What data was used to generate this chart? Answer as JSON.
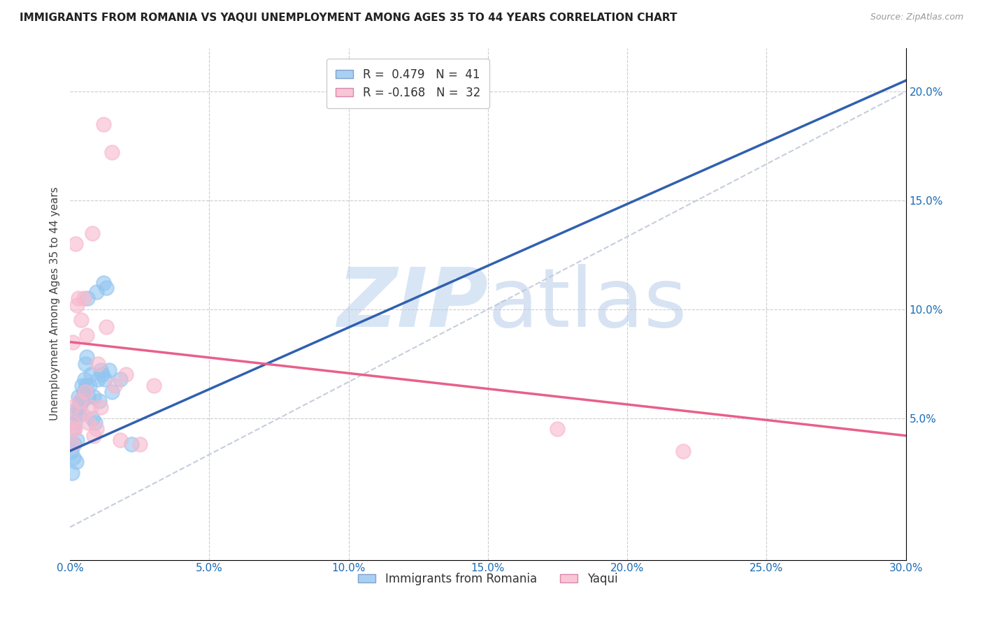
{
  "title": "IMMIGRANTS FROM ROMANIA VS YAQUI UNEMPLOYMENT AMONG AGES 35 TO 44 YEARS CORRELATION CHART",
  "source": "Source: ZipAtlas.com",
  "xlabel_ticks": [
    "0.0%",
    "5.0%",
    "10.0%",
    "15.0%",
    "20.0%",
    "25.0%",
    "30.0%"
  ],
  "xlabel_vals": [
    0.0,
    5.0,
    10.0,
    15.0,
    20.0,
    25.0,
    30.0
  ],
  "ylabel_right_ticks": [
    "20.0%",
    "15.0%",
    "10.0%",
    "5.0%"
  ],
  "ylabel_right_vals": [
    20.0,
    15.0,
    10.0,
    5.0
  ],
  "ylabel": "Unemployment Among Ages 35 to 44 years",
  "blue_scatter_x": [
    0.05,
    0.08,
    0.1,
    0.12,
    0.15,
    0.18,
    0.2,
    0.22,
    0.25,
    0.28,
    0.3,
    0.32,
    0.35,
    0.38,
    0.4,
    0.42,
    0.45,
    0.5,
    0.52,
    0.55,
    0.58,
    0.6,
    0.62,
    0.65,
    0.7,
    0.75,
    0.8,
    0.85,
    0.9,
    0.95,
    1.0,
    1.05,
    1.1,
    1.15,
    1.2,
    1.25,
    1.3,
    1.4,
    1.5,
    1.8,
    2.2
  ],
  "blue_scatter_y": [
    3.5,
    2.5,
    4.5,
    3.2,
    3.8,
    4.8,
    5.2,
    3.0,
    4.0,
    5.5,
    6.0,
    5.2,
    5.5,
    5.8,
    5.8,
    6.5,
    5.8,
    6.2,
    6.8,
    7.5,
    6.5,
    7.8,
    10.5,
    6.0,
    6.5,
    7.0,
    5.0,
    6.0,
    4.8,
    10.8,
    6.8,
    5.8,
    7.2,
    7.0,
    11.2,
    6.8,
    11.0,
    7.2,
    6.2,
    6.8,
    3.8
  ],
  "pink_scatter_x": [
    0.05,
    0.07,
    0.09,
    0.1,
    0.15,
    0.18,
    0.2,
    0.25,
    0.3,
    0.35,
    0.4,
    0.45,
    0.5,
    0.55,
    0.6,
    0.65,
    0.75,
    0.8,
    0.85,
    0.95,
    1.0,
    1.1,
    1.2,
    1.3,
    1.5,
    1.6,
    1.8,
    2.0,
    2.5,
    3.0,
    17.5,
    22.0
  ],
  "pink_scatter_y": [
    5.5,
    4.8,
    3.8,
    8.5,
    4.5,
    4.5,
    13.0,
    10.2,
    10.5,
    5.8,
    9.5,
    5.2,
    10.5,
    6.2,
    8.8,
    4.8,
    5.5,
    13.5,
    4.2,
    4.5,
    7.5,
    5.5,
    18.5,
    9.2,
    17.2,
    6.5,
    4.0,
    7.0,
    3.8,
    6.5,
    4.5,
    3.5
  ],
  "blue_line_x": [
    0.0,
    30.0
  ],
  "blue_line_y": [
    3.5,
    20.5
  ],
  "pink_line_x": [
    0.0,
    30.0
  ],
  "pink_line_y": [
    8.5,
    4.2
  ],
  "diag_line_x": [
    0.0,
    30.0
  ],
  "diag_line_y": [
    0.0,
    20.0
  ],
  "blue_color": "#92c5f0",
  "pink_color": "#f7b8cc",
  "blue_line_color": "#3060b0",
  "pink_line_color": "#e8608a",
  "diag_line_color": "#c0c8d8",
  "background_color": "#ffffff",
  "xlim": [
    0.0,
    30.0
  ],
  "ylim": [
    -1.5,
    22.0
  ],
  "legend1_blue_label": "R =  0.479   N =  41",
  "legend1_pink_label": "R = -0.168   N =  32",
  "legend2_blue_label": "Immigrants from Romania",
  "legend2_pink_label": "Yaqui"
}
